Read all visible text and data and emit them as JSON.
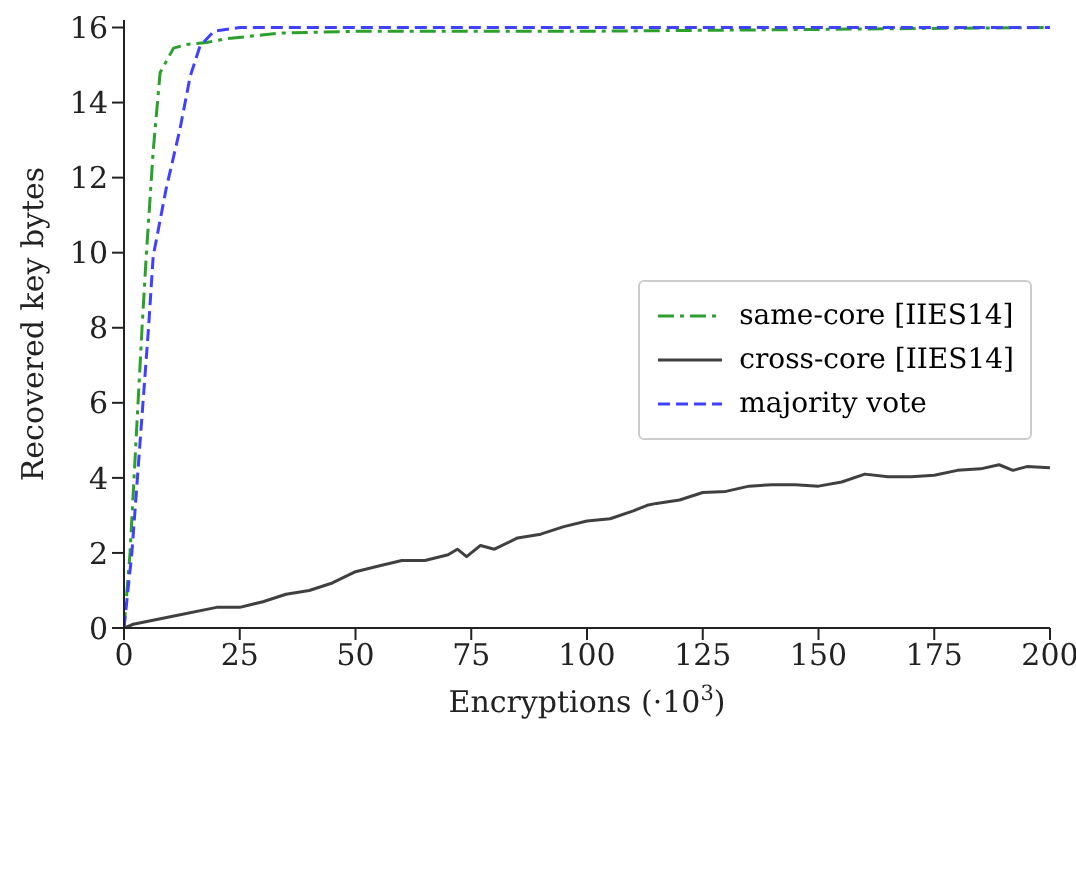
{
  "chart_data": {
    "type": "line",
    "xlabel": "Encryptions (·10$^{3}$)",
    "ylabel": "Recovered key bytes",
    "xlim": [
      0,
      200
    ],
    "ylim": [
      0,
      16.2
    ],
    "xticks": [
      0,
      25,
      50,
      75,
      100,
      125,
      150,
      175,
      200
    ],
    "yticks": [
      0,
      2,
      4,
      6,
      8,
      10,
      12,
      14,
      16
    ],
    "grid": false,
    "legend": "right",
    "marker": "none",
    "series": [
      {
        "name": "same-core [IIES14]",
        "color": "#2ca02c",
        "line_style": "dashdot",
        "x": [
          0,
          1.3,
          3.9,
          4.8,
          6.3,
          7.8,
          10.7,
          13.5,
          17.8,
          22,
          33.7,
          50,
          100,
          150,
          200
        ],
        "values": [
          0,
          2,
          8,
          9.9,
          12.7,
          14.8,
          15.45,
          15.55,
          15.6,
          15.7,
          15.85,
          15.9,
          15.9,
          15.95,
          16
        ]
      },
      {
        "name": "cross-core [IIES14]",
        "color": "#404040",
        "line_style": "solid",
        "x": [
          0,
          2,
          10,
          20,
          25,
          30,
          35,
          40,
          45,
          50,
          55,
          60,
          65,
          70,
          72,
          74,
          77,
          80,
          85,
          90,
          95,
          100,
          105,
          110,
          113,
          115,
          120,
          125,
          130,
          135,
          140,
          145,
          150,
          155,
          160,
          165,
          170,
          175,
          180,
          185,
          189,
          192,
          195,
          200
        ],
        "values": [
          0,
          0.1,
          0.3,
          0.55,
          0.55,
          0.7,
          0.9,
          1.0,
          1.2,
          1.5,
          1.65,
          1.8,
          1.8,
          1.95,
          2.1,
          1.9,
          2.2,
          2.1,
          2.4,
          2.5,
          2.7,
          2.85,
          2.91,
          3.12,
          3.27,
          3.32,
          3.41,
          3.61,
          3.64,
          3.78,
          3.82,
          3.82,
          3.78,
          3.89,
          4.1,
          4.03,
          4.03,
          4.07,
          4.2,
          4.24,
          4.35,
          4.2,
          4.3,
          4.27
        ]
      },
      {
        "name": "majority vote",
        "color": "#4040ff",
        "line_style": "dashed",
        "x": [
          0,
          1.7,
          5.3,
          6.3,
          9.1,
          12.1,
          14.3,
          16.4,
          19.4,
          25,
          50,
          100,
          200
        ],
        "values": [
          0,
          2,
          8,
          9.9,
          11.7,
          13.3,
          14.7,
          15.5,
          15.9,
          16,
          16,
          16,
          16
        ]
      }
    ]
  }
}
